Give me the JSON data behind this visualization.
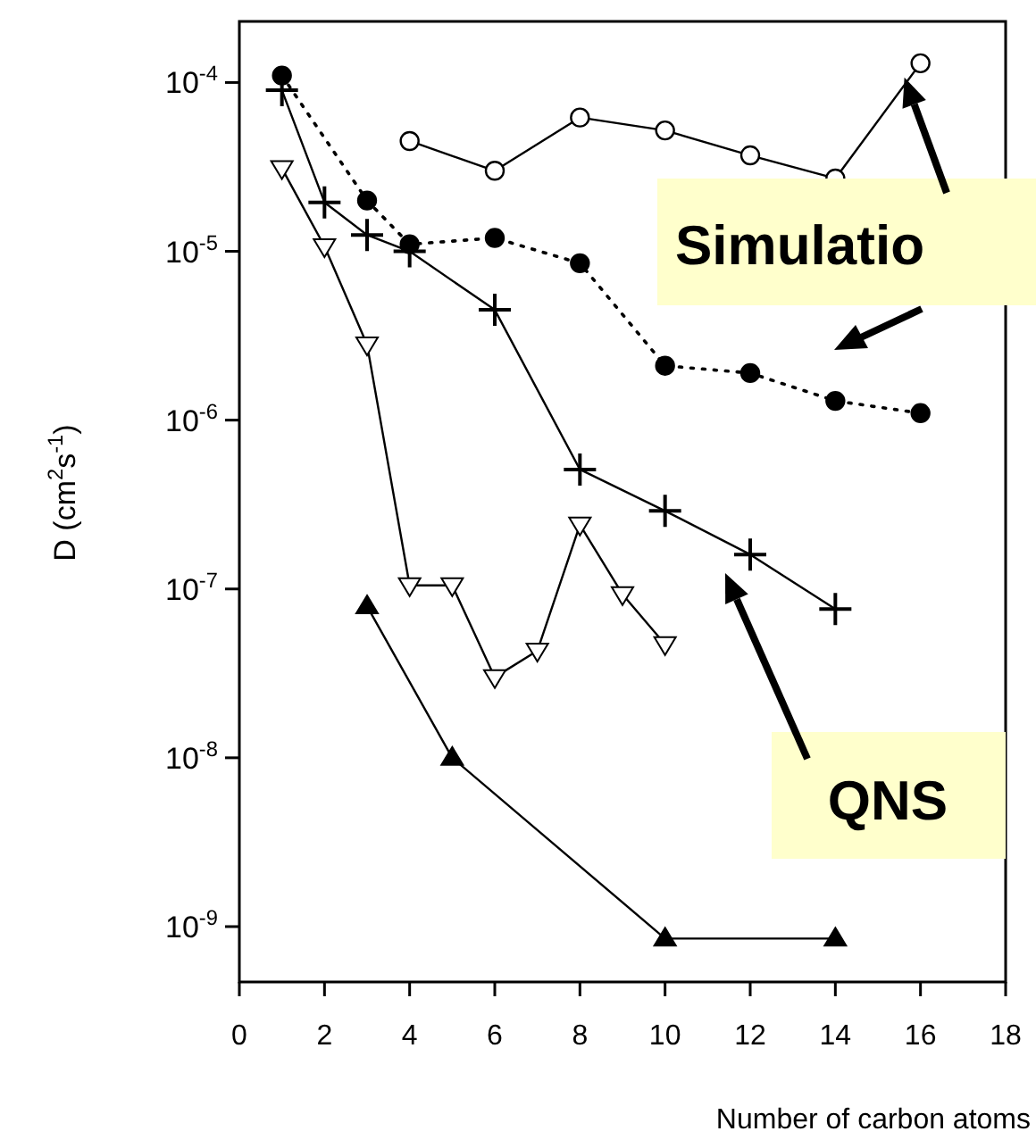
{
  "chart_data": {
    "type": "line",
    "xlabel": "Number of carbon atoms",
    "ylabel": "D (cm$^{2}$s$^{-1}$)",
    "log": "y",
    "grid": false,
    "xlim": [
      0,
      18
    ],
    "xticks": [
      0,
      2,
      4,
      6,
      8,
      10,
      12,
      14,
      16,
      18
    ],
    "ylim": [
      4.7e-10,
      0.00023
    ],
    "yticks": [
      {
        "value": 0.0001,
        "label": "10$^{-4}$"
      },
      {
        "value": 1e-05,
        "label": "10$^{-5}$"
      },
      {
        "value": 1e-06,
        "label": "10$^{-6}$"
      },
      {
        "value": 1e-07,
        "label": "10$^{-7}$"
      },
      {
        "value": 1e-08,
        "label": "10$^{-8}$"
      },
      {
        "value": 1e-09,
        "label": "10$^{-9}$"
      }
    ],
    "annotations": [
      {
        "text": "Simulatio",
        "x": 16,
        "y": 0.00013
      },
      "QNS"
    ],
    "series": [
      {
        "color": "#000000",
        "marker": "circle-open",
        "line_style": "solid",
        "x": [
          4,
          6,
          8,
          10,
          12,
          14,
          16
        ],
        "values": [
          4.5e-05,
          3e-05,
          6.2e-05,
          5.2e-05,
          3.7e-05,
          2.7e-05,
          0.00013
        ]
      },
      {
        "color": "#000000",
        "marker": "circle",
        "line_style": "dotted",
        "x": [
          1,
          3,
          4,
          6,
          8,
          10,
          12,
          14,
          16
        ],
        "values": [
          0.00011,
          2e-05,
          1.1e-05,
          1.2e-05,
          8.5e-06,
          2.1e-06,
          1.9e-06,
          1.3e-06,
          1.1e-06
        ]
      },
      {
        "color": "#000000",
        "marker": "cross",
        "line_style": "solid",
        "x": [
          1,
          2,
          3,
          4,
          6,
          8,
          10,
          12,
          14
        ],
        "values": [
          9e-05,
          1.95e-05,
          1.25e-05,
          1e-05,
          4.5e-06,
          5.1e-07,
          2.9e-07,
          1.6e-07,
          7.6e-08
        ]
      },
      {
        "color": "#000000",
        "marker": "triangle-down-open",
        "line_style": "solid",
        "x": [
          1,
          2,
          3,
          4,
          5,
          6,
          7,
          8,
          9,
          10
        ],
        "values": [
          3.1e-05,
          1.07e-05,
          2.8e-06,
          1.05e-07,
          1.05e-07,
          3e-08,
          4.3e-08,
          2.4e-07,
          9.3e-08,
          4.7e-08
        ]
      },
      {
        "color": "#000000",
        "marker": "triangle",
        "line_style": "solid",
        "x": [
          3,
          5,
          10,
          14
        ],
        "values": [
          7.9e-08,
          1e-08,
          8.5e-10,
          8.5e-10
        ]
      }
    ]
  }
}
